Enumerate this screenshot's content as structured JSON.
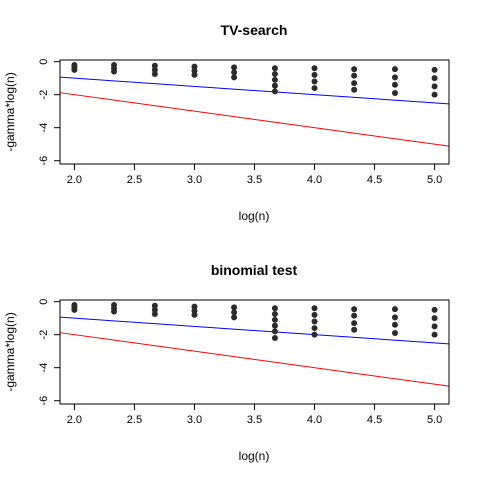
{
  "chart_data": [
    {
      "type": "scatter",
      "title": "TV-search",
      "xlabel": "log(n)",
      "ylabel": "-gamma*log(n)",
      "xlim": [
        1.88,
        5.12
      ],
      "ylim": [
        -6.2,
        0.1
      ],
      "xticks": [
        "2.0",
        "2.5",
        "3.0",
        "3.5",
        "4.0",
        "4.5",
        "5.0"
      ],
      "xtick_values": [
        2.0,
        2.5,
        3.0,
        3.5,
        4.0,
        4.5,
        5.0
      ],
      "yticks": [
        "0",
        "-2",
        "-4",
        "-6"
      ],
      "ytick_values": [
        0,
        -2,
        -4,
        -6
      ],
      "points": [
        {
          "x": 2.0,
          "y": -0.2
        },
        {
          "x": 2.0,
          "y": -0.35
        },
        {
          "x": 2.0,
          "y": -0.5
        },
        {
          "x": 2.33,
          "y": -0.2
        },
        {
          "x": 2.33,
          "y": -0.4
        },
        {
          "x": 2.33,
          "y": -0.6
        },
        {
          "x": 2.67,
          "y": -0.25
        },
        {
          "x": 2.67,
          "y": -0.5
        },
        {
          "x": 2.67,
          "y": -0.75
        },
        {
          "x": 3.0,
          "y": -0.3
        },
        {
          "x": 3.0,
          "y": -0.55
        },
        {
          "x": 3.0,
          "y": -0.8
        },
        {
          "x": 3.33,
          "y": -0.35
        },
        {
          "x": 3.33,
          "y": -0.65
        },
        {
          "x": 3.33,
          "y": -0.95
        },
        {
          "x": 3.67,
          "y": -0.4
        },
        {
          "x": 3.67,
          "y": -0.75
        },
        {
          "x": 3.67,
          "y": -1.1
        },
        {
          "x": 3.67,
          "y": -1.45
        },
        {
          "x": 3.67,
          "y": -1.8
        },
        {
          "x": 4.0,
          "y": -0.4
        },
        {
          "x": 4.0,
          "y": -0.8
        },
        {
          "x": 4.0,
          "y": -1.2
        },
        {
          "x": 4.0,
          "y": -1.6
        },
        {
          "x": 4.33,
          "y": -0.45
        },
        {
          "x": 4.33,
          "y": -0.85
        },
        {
          "x": 4.33,
          "y": -1.3
        },
        {
          "x": 4.33,
          "y": -1.7
        },
        {
          "x": 4.67,
          "y": -0.45
        },
        {
          "x": 4.67,
          "y": -0.95
        },
        {
          "x": 4.67,
          "y": -1.4
        },
        {
          "x": 4.67,
          "y": -1.9
        },
        {
          "x": 5.0,
          "y": -0.5
        },
        {
          "x": 5.0,
          "y": -1.0
        },
        {
          "x": 5.0,
          "y": -1.5
        },
        {
          "x": 5.0,
          "y": -2.0
        }
      ],
      "lines": [
        {
          "color": "#0000ff",
          "x": [
            1.88,
            5.12
          ],
          "y": [
            -0.94,
            -2.56
          ]
        },
        {
          "color": "#ff0000",
          "x": [
            1.88,
            5.12
          ],
          "y": [
            -1.88,
            -5.12
          ]
        }
      ]
    },
    {
      "type": "scatter",
      "title": "binomial test",
      "xlabel": "log(n)",
      "ylabel": "-gamma*log(n)",
      "xlim": [
        1.88,
        5.12
      ],
      "ylim": [
        -6.2,
        0.1
      ],
      "xticks": [
        "2.0",
        "2.5",
        "3.0",
        "3.5",
        "4.0",
        "4.5",
        "5.0"
      ],
      "xtick_values": [
        2.0,
        2.5,
        3.0,
        3.5,
        4.0,
        4.5,
        5.0
      ],
      "yticks": [
        "0",
        "-2",
        "-4",
        "-6"
      ],
      "ytick_values": [
        0,
        -2,
        -4,
        -6
      ],
      "points": [
        {
          "x": 2.0,
          "y": -0.2
        },
        {
          "x": 2.0,
          "y": -0.35
        },
        {
          "x": 2.0,
          "y": -0.5
        },
        {
          "x": 2.33,
          "y": -0.2
        },
        {
          "x": 2.33,
          "y": -0.4
        },
        {
          "x": 2.33,
          "y": -0.6
        },
        {
          "x": 2.67,
          "y": -0.25
        },
        {
          "x": 2.67,
          "y": -0.5
        },
        {
          "x": 2.67,
          "y": -0.75
        },
        {
          "x": 3.0,
          "y": -0.3
        },
        {
          "x": 3.0,
          "y": -0.55
        },
        {
          "x": 3.0,
          "y": -0.8
        },
        {
          "x": 3.33,
          "y": -0.35
        },
        {
          "x": 3.33,
          "y": -0.65
        },
        {
          "x": 3.33,
          "y": -0.95
        },
        {
          "x": 3.67,
          "y": -0.4
        },
        {
          "x": 3.67,
          "y": -0.75
        },
        {
          "x": 3.67,
          "y": -1.1
        },
        {
          "x": 3.67,
          "y": -1.45
        },
        {
          "x": 3.67,
          "y": -1.8
        },
        {
          "x": 3.67,
          "y": -2.2
        },
        {
          "x": 4.0,
          "y": -0.4
        },
        {
          "x": 4.0,
          "y": -0.8
        },
        {
          "x": 4.0,
          "y": -1.2
        },
        {
          "x": 4.0,
          "y": -1.6
        },
        {
          "x": 4.0,
          "y": -2.0
        },
        {
          "x": 4.33,
          "y": -0.45
        },
        {
          "x": 4.33,
          "y": -0.85
        },
        {
          "x": 4.33,
          "y": -1.3
        },
        {
          "x": 4.33,
          "y": -1.7
        },
        {
          "x": 4.67,
          "y": -0.45
        },
        {
          "x": 4.67,
          "y": -0.95
        },
        {
          "x": 4.67,
          "y": -1.4
        },
        {
          "x": 4.67,
          "y": -1.9
        },
        {
          "x": 5.0,
          "y": -0.5
        },
        {
          "x": 5.0,
          "y": -1.0
        },
        {
          "x": 5.0,
          "y": -1.5
        },
        {
          "x": 5.0,
          "y": -2.0
        }
      ],
      "lines": [
        {
          "color": "#0000ff",
          "x": [
            1.88,
            5.12
          ],
          "y": [
            -0.94,
            -2.56
          ]
        },
        {
          "color": "#ff0000",
          "x": [
            1.88,
            5.12
          ],
          "y": [
            -1.88,
            -5.12
          ]
        }
      ]
    }
  ]
}
